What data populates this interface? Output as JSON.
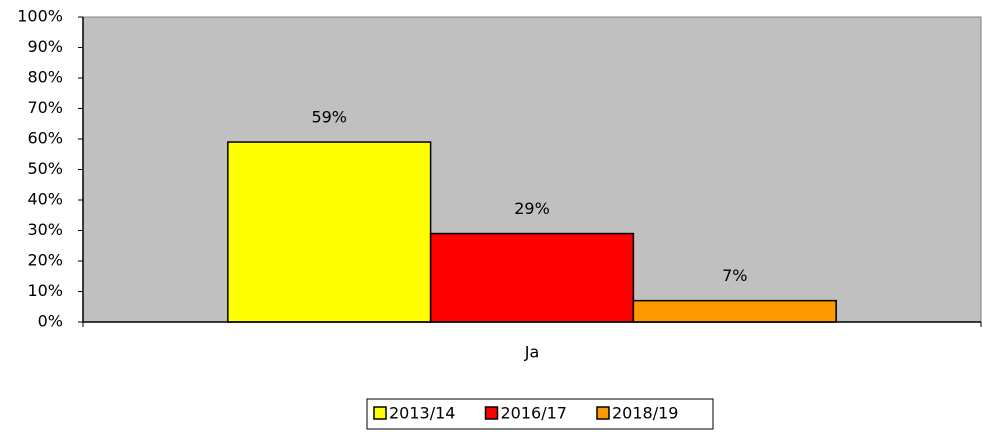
{
  "chart_data": {
    "type": "bar",
    "categories": [
      "Ja"
    ],
    "series": [
      {
        "name": "2013/14",
        "color": "#ffff00",
        "values": [
          59
        ],
        "value_labels": [
          "59%"
        ]
      },
      {
        "name": "2016/17",
        "color": "#ff0000",
        "values": [
          29
        ],
        "value_labels": [
          "29%"
        ]
      },
      {
        "name": "2018/19",
        "color": "#ff9900",
        "values": [
          7
        ],
        "value_labels": [
          "7%"
        ]
      }
    ],
    "ylim": [
      0,
      100
    ],
    "yticks": [
      {
        "value": 0,
        "label": "0%"
      },
      {
        "value": 10,
        "label": "10%"
      },
      {
        "value": 20,
        "label": "20%"
      },
      {
        "value": 30,
        "label": "30%"
      },
      {
        "value": 40,
        "label": "40%"
      },
      {
        "value": 50,
        "label": "50%"
      },
      {
        "value": 60,
        "label": "60%"
      },
      {
        "value": 70,
        "label": "70%"
      },
      {
        "value": 80,
        "label": "80%"
      },
      {
        "value": 90,
        "label": "90%"
      },
      {
        "value": 100,
        "label": "100%"
      }
    ],
    "plot_background": "#c0c0c0",
    "legend": "bottom"
  }
}
